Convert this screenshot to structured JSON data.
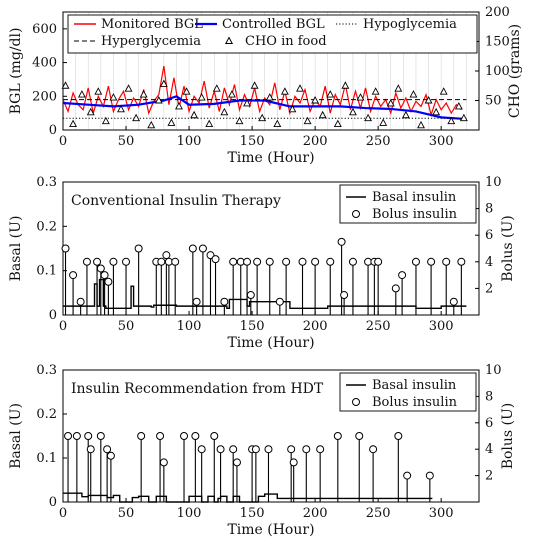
{
  "chart_data": [
    {
      "type": "line",
      "xlabel": "Time (Hour)",
      "ylabel": "BGL (mg/dl)",
      "y2label": "CHO (grams)",
      "xlim": [
        0,
        330
      ],
      "ylim": [
        0,
        700
      ],
      "y2lim": [
        0,
        200
      ],
      "xticks": [
        0,
        50,
        100,
        150,
        200,
        250,
        300
      ],
      "yticks": [
        0,
        200,
        400,
        600
      ],
      "y2ticks": [
        50,
        100,
        150,
        200
      ],
      "legend_position": "top",
      "series": [
        {
          "name": "Monitored BGL",
          "color": "#ff0000",
          "axis": "left",
          "style": "solid",
          "x": [
            0,
            4,
            8,
            12,
            16,
            20,
            24,
            28,
            32,
            36,
            40,
            44,
            48,
            52,
            56,
            60,
            64,
            68,
            72,
            76,
            80,
            84,
            88,
            92,
            96,
            100,
            104,
            108,
            112,
            116,
            120,
            124,
            128,
            132,
            136,
            140,
            144,
            148,
            152,
            156,
            160,
            164,
            168,
            172,
            176,
            180,
            184,
            188,
            192,
            196,
            200,
            204,
            208,
            212,
            216,
            220,
            224,
            228,
            232,
            236,
            240,
            244,
            248,
            252,
            256,
            260,
            264,
            268,
            272,
            276,
            280,
            284,
            288,
            292,
            296,
            300,
            304,
            308,
            312,
            316
          ],
          "y": [
            180,
            110,
            220,
            150,
            120,
            250,
            100,
            200,
            140,
            260,
            110,
            180,
            230,
            120,
            190,
            140,
            240,
            100,
            170,
            210,
            380,
            150,
            310,
            130,
            260,
            110,
            200,
            160,
            290,
            130,
            230,
            110,
            250,
            150,
            270,
            120,
            210,
            140,
            250,
            110,
            190,
            150,
            280,
            120,
            230,
            100,
            200,
            160,
            240,
            110,
            180,
            140,
            260,
            100,
            210,
            150,
            270,
            120,
            230,
            130,
            250,
            110,
            200,
            140,
            180,
            100,
            220,
            130,
            190,
            110,
            170,
            140,
            210,
            90,
            180,
            120,
            160,
            100,
            150,
            120
          ]
        },
        {
          "name": "Controlled BGL",
          "color": "#0000ff",
          "axis": "left",
          "style": "solid",
          "x": [
            0,
            20,
            40,
            60,
            80,
            90,
            100,
            120,
            140,
            160,
            180,
            200,
            220,
            240,
            260,
            280,
            300,
            320
          ],
          "y": [
            160,
            150,
            140,
            150,
            175,
            200,
            150,
            155,
            175,
            175,
            140,
            140,
            140,
            130,
            125,
            110,
            75,
            65
          ]
        },
        {
          "name": "Hypoglycemia",
          "axis": "left",
          "style": "dotted",
          "x": [
            0,
            320
          ],
          "y": [
            70,
            70
          ]
        },
        {
          "name": "Hyperglycemia",
          "axis": "left",
          "style": "dashed",
          "x": [
            0,
            320
          ],
          "y": [
            180,
            180
          ]
        },
        {
          "name": "CHO in food",
          "axis": "right",
          "style": "markers",
          "marker": "triangle",
          "x": [
            2,
            8,
            15,
            22,
            28,
            34,
            40,
            46,
            52,
            58,
            64,
            70,
            76,
            80,
            86,
            92,
            98,
            104,
            110,
            116,
            122,
            128,
            134,
            140,
            146,
            152,
            158,
            164,
            170,
            176,
            182,
            188,
            194,
            200,
            206,
            212,
            218,
            224,
            230,
            236,
            242,
            248,
            254,
            260,
            266,
            272,
            278,
            284,
            290,
            296,
            302,
            308,
            314,
            318
          ],
          "y": [
            75,
            10,
            60,
            30,
            65,
            15,
            55,
            35,
            70,
            20,
            60,
            8,
            50,
            78,
            12,
            40,
            65,
            25,
            55,
            10,
            70,
            30,
            60,
            15,
            45,
            75,
            20,
            55,
            10,
            65,
            35,
            70,
            15,
            50,
            25,
            60,
            10,
            75,
            30,
            55,
            20,
            65,
            12,
            45,
            70,
            25,
            60,
            8,
            50,
            30,
            65,
            15,
            40,
            20
          ]
        }
      ]
    },
    {
      "type": "line",
      "title": "Conventional Insulin Therapy",
      "xlabel": "Time (Hour)",
      "ylabel": "Basal (U)",
      "y2label": "Bolus (U)",
      "xlim": [
        0,
        330
      ],
      "ylim": [
        0,
        0.3
      ],
      "y2lim": [
        0,
        10
      ],
      "xticks": [
        0,
        50,
        100,
        150,
        200,
        250,
        300
      ],
      "yticks": [
        0,
        0.1,
        0.2,
        0.3
      ],
      "y2ticks": [
        2,
        4,
        6,
        8,
        10
      ],
      "legend_position": "top-right",
      "series": [
        {
          "name": "Basal insulin",
          "axis": "left",
          "style": "step",
          "x": [
            0,
            25,
            27,
            29,
            32,
            34,
            54,
            56,
            70,
            72,
            90,
            130,
            132,
            146,
            148,
            180,
            210,
            280,
            300,
            320
          ],
          "y": [
            0.02,
            0.07,
            0.02,
            0.08,
            0.02,
            0.015,
            0.065,
            0.02,
            0.018,
            0.022,
            0.02,
            0.015,
            0.035,
            0.02,
            0.03,
            0.015,
            0.02,
            0.015,
            0.02,
            0.02
          ]
        },
        {
          "name": "Bolus insulin",
          "axis": "right",
          "style": "stem-circle",
          "x": [
            2,
            8,
            14,
            19,
            27,
            30,
            33,
            36,
            40,
            50,
            60,
            74,
            78,
            82,
            84,
            89,
            103,
            106,
            111,
            117,
            121,
            128,
            135,
            141,
            146,
            149,
            154,
            164,
            172,
            177,
            190,
            200,
            212,
            221,
            223,
            230,
            242,
            247,
            250,
            264,
            269,
            280,
            292,
            304,
            310,
            316
          ],
          "y": [
            5,
            3,
            1,
            4,
            4,
            3.5,
            3,
            2.5,
            4,
            4,
            5,
            4,
            4,
            4.5,
            4,
            4,
            5,
            1,
            5,
            4.5,
            4.2,
            1,
            4,
            4,
            4,
            1.5,
            4,
            4,
            1,
            4,
            4,
            4,
            4,
            5.5,
            1.5,
            4,
            4,
            4,
            4,
            2,
            3,
            4,
            4,
            4,
            1,
            4
          ]
        }
      ]
    },
    {
      "type": "line",
      "title": "Insulin Recommendation from HDT",
      "xlabel": "Time (Hour)",
      "ylabel": "Basal (U)",
      "y2label": "Bolus (U)",
      "xlim": [
        0,
        330
      ],
      "ylim": [
        0,
        0.3
      ],
      "y2lim": [
        0,
        10
      ],
      "xticks": [
        0,
        50,
        100,
        150,
        200,
        250,
        300
      ],
      "yticks": [
        0,
        0.1,
        0.2,
        0.3
      ],
      "y2ticks": [
        2,
        4,
        6,
        8,
        10
      ],
      "legend_position": "top-right",
      "series": [
        {
          "name": "Basal insulin",
          "axis": "left",
          "style": "step",
          "x": [
            0,
            5,
            15,
            20,
            30,
            35,
            40,
            45,
            55,
            60,
            68,
            74,
            82,
            100,
            110,
            115,
            120,
            123,
            125,
            130,
            135,
            140,
            155,
            160,
            170,
            200,
            220,
            240,
            260,
            280,
            293
          ],
          "y": [
            0.02,
            0.02,
            0.012,
            0.015,
            0.015,
            0.01,
            0.015,
            0.0,
            0.01,
            0.013,
            0.0,
            0.013,
            0.0,
            0.013,
            0.0,
            0.013,
            0.0,
            0.008,
            0.013,
            0.0,
            0.013,
            0.0,
            0.013,
            0.018,
            0.008,
            0.008,
            0.008,
            0.008,
            0.008,
            0.008,
            0.008
          ]
        },
        {
          "name": "Bolus insulin",
          "axis": "right",
          "style": "stem-circle",
          "x": [
            4,
            11,
            20,
            22,
            30,
            35,
            38,
            62,
            77,
            80,
            96,
            105,
            110,
            120,
            125,
            135,
            138,
            150,
            153,
            163,
            181,
            183,
            193,
            204,
            218,
            235,
            246,
            266,
            273,
            291
          ],
          "y": [
            5,
            5,
            5,
            4,
            5,
            4,
            3.5,
            5,
            5,
            3,
            5,
            5,
            4,
            5,
            4,
            4,
            3,
            4,
            4,
            4,
            4,
            3,
            4,
            4,
            5,
            5,
            4,
            5,
            2,
            2
          ]
        }
      ]
    }
  ]
}
